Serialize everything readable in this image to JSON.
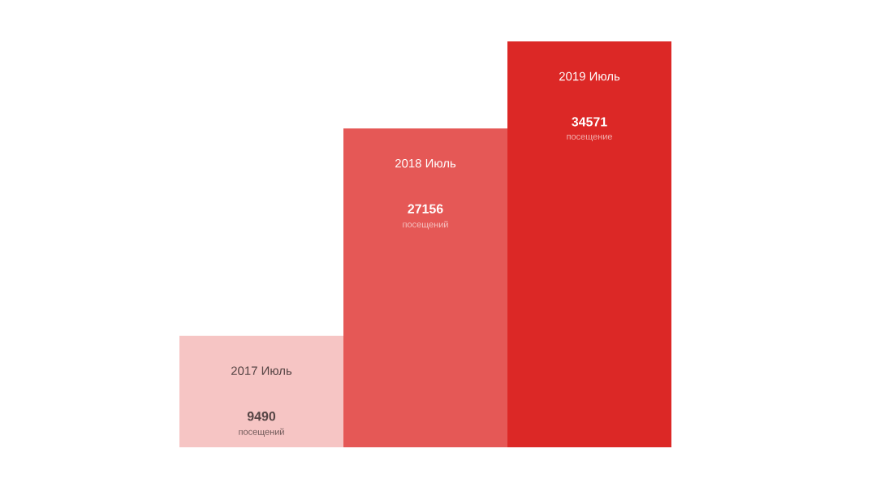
{
  "chart_data": {
    "type": "bar",
    "categories": [
      "2017 Июль",
      "2018 Июль",
      "2019 Июль"
    ],
    "values": [
      9490,
      27156,
      34571
    ],
    "colors": [
      "#f6c5c4",
      "#e55856",
      "#dc2826"
    ],
    "data_labels": true,
    "annotations": [
      "посещений",
      "посещений",
      "посещение"
    ]
  }
}
